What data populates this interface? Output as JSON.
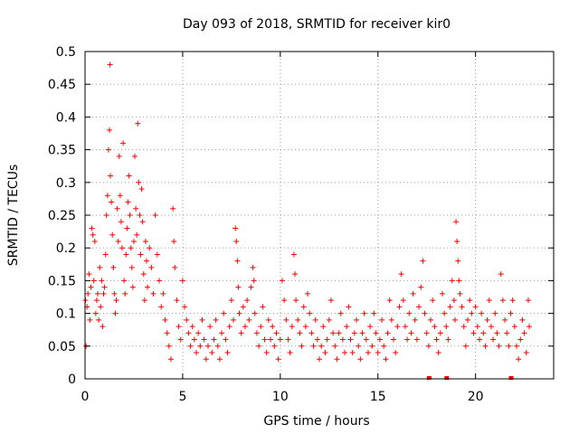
{
  "chart_data": {
    "type": "scatter",
    "title": "Day 093 of 2018, SRMTID for receiver kir0",
    "xlabel": "GPS time / hours",
    "ylabel": "SRMTID / TECUs",
    "xlim": [
      0,
      24
    ],
    "ylim": [
      0,
      0.5
    ],
    "xticks": [
      0,
      5,
      10,
      15,
      20
    ],
    "xtick_labels": [
      "0",
      "5",
      "10",
      "15",
      "20"
    ],
    "yticks": [
      0,
      0.05,
      0.1,
      0.15,
      0.2,
      0.25,
      0.3,
      0.35,
      0.4,
      0.45,
      0.5
    ],
    "ytick_labels": [
      "0",
      "0.05",
      "0.1",
      "0.15",
      "0.2",
      "0.25",
      "0.3",
      "0.35",
      "0.4",
      "0.45",
      "0.5"
    ],
    "grid": true,
    "marker": "+",
    "color": "#ff0000",
    "series": [
      {
        "name": "SRMTID",
        "points": [
          [
            0.02,
            0.12
          ],
          [
            0.05,
            0.05
          ],
          [
            0.1,
            0.11
          ],
          [
            0.15,
            0.13
          ],
          [
            0.2,
            0.16
          ],
          [
            0.25,
            0.09
          ],
          [
            0.3,
            0.14
          ],
          [
            0.35,
            0.23
          ],
          [
            0.4,
            0.22
          ],
          [
            0.45,
            0.15
          ],
          [
            0.5,
            0.21
          ],
          [
            0.55,
            0.1
          ],
          [
            0.6,
            0.12
          ],
          [
            0.65,
            0.13
          ],
          [
            0.7,
            0.09
          ],
          [
            0.75,
            0.17
          ],
          [
            0.8,
            0.11
          ],
          [
            0.85,
            0.15
          ],
          [
            0.9,
            0.08
          ],
          [
            0.95,
            0.13
          ],
          [
            1.0,
            0.14
          ],
          [
            1.05,
            0.19
          ],
          [
            1.1,
            0.25
          ],
          [
            1.15,
            0.28
          ],
          [
            1.2,
            0.35
          ],
          [
            1.25,
            0.38
          ],
          [
            1.28,
            0.48
          ],
          [
            1.3,
            0.31
          ],
          [
            1.35,
            0.27
          ],
          [
            1.4,
            0.22
          ],
          [
            1.45,
            0.17
          ],
          [
            1.5,
            0.13
          ],
          [
            1.55,
            0.1
          ],
          [
            1.6,
            0.12
          ],
          [
            1.65,
            0.26
          ],
          [
            1.7,
            0.21
          ],
          [
            1.75,
            0.34
          ],
          [
            1.8,
            0.28
          ],
          [
            1.85,
            0.24
          ],
          [
            1.9,
            0.2
          ],
          [
            1.95,
            0.36
          ],
          [
            2.0,
            0.15
          ],
          [
            2.05,
            0.13
          ],
          [
            2.1,
            0.19
          ],
          [
            2.15,
            0.23
          ],
          [
            2.2,
            0.27
          ],
          [
            2.25,
            0.31
          ],
          [
            2.3,
            0.25
          ],
          [
            2.35,
            0.2
          ],
          [
            2.4,
            0.17
          ],
          [
            2.45,
            0.14
          ],
          [
            2.5,
            0.21
          ],
          [
            2.55,
            0.34
          ],
          [
            2.6,
            0.26
          ],
          [
            2.65,
            0.22
          ],
          [
            2.7,
            0.39
          ],
          [
            2.75,
            0.3
          ],
          [
            2.8,
            0.25
          ],
          [
            2.85,
            0.19
          ],
          [
            2.9,
            0.29
          ],
          [
            2.95,
            0.24
          ],
          [
            3.0,
            0.16
          ],
          [
            3.05,
            0.12
          ],
          [
            3.1,
            0.21
          ],
          [
            3.15,
            0.18
          ],
          [
            3.2,
            0.14
          ],
          [
            3.3,
            0.2
          ],
          [
            3.4,
            0.17
          ],
          [
            3.5,
            0.13
          ],
          [
            3.6,
            0.25
          ],
          [
            3.7,
            0.19
          ],
          [
            3.8,
            0.15
          ],
          [
            3.9,
            0.11
          ],
          [
            4.0,
            0.13
          ],
          [
            4.1,
            0.09
          ],
          [
            4.2,
            0.07
          ],
          [
            4.3,
            0.05
          ],
          [
            4.4,
            0.03
          ],
          [
            4.5,
            0.26
          ],
          [
            4.55,
            0.21
          ],
          [
            4.6,
            0.17
          ],
          [
            4.7,
            0.12
          ],
          [
            4.8,
            0.08
          ],
          [
            4.9,
            0.06
          ],
          [
            5.0,
            0.15
          ],
          [
            5.1,
            0.11
          ],
          [
            5.2,
            0.09
          ],
          [
            5.3,
            0.07
          ],
          [
            5.4,
            0.05
          ],
          [
            5.5,
            0.08
          ],
          [
            5.6,
            0.06
          ],
          [
            5.7,
            0.04
          ],
          [
            5.8,
            0.07
          ],
          [
            5.9,
            0.05
          ],
          [
            6.0,
            0.09
          ],
          [
            6.1,
            0.06
          ],
          [
            6.2,
            0.03
          ],
          [
            6.3,
            0.05
          ],
          [
            6.4,
            0.08
          ],
          [
            6.5,
            0.04
          ],
          [
            6.6,
            0.06
          ],
          [
            6.7,
            0.09
          ],
          [
            6.8,
            0.05
          ],
          [
            6.9,
            0.03
          ],
          [
            7.0,
            0.07
          ],
          [
            7.1,
            0.1
          ],
          [
            7.2,
            0.06
          ],
          [
            7.3,
            0.04
          ],
          [
            7.4,
            0.08
          ],
          [
            7.5,
            0.12
          ],
          [
            7.6,
            0.09
          ],
          [
            7.7,
            0.23
          ],
          [
            7.75,
            0.21
          ],
          [
            7.8,
            0.18
          ],
          [
            7.85,
            0.14
          ],
          [
            7.9,
            0.1
          ],
          [
            8.0,
            0.07
          ],
          [
            8.1,
            0.11
          ],
          [
            8.2,
            0.08
          ],
          [
            8.3,
            0.12
          ],
          [
            8.4,
            0.09
          ],
          [
            8.5,
            0.14
          ],
          [
            8.6,
            0.17
          ],
          [
            8.65,
            0.15
          ],
          [
            8.7,
            0.1
          ],
          [
            8.8,
            0.07
          ],
          [
            8.9,
            0.05
          ],
          [
            9.0,
            0.08
          ],
          [
            9.1,
            0.11
          ],
          [
            9.2,
            0.06
          ],
          [
            9.3,
            0.04
          ],
          [
            9.4,
            0.09
          ],
          [
            9.5,
            0.06
          ],
          [
            9.6,
            0.08
          ],
          [
            9.7,
            0.05
          ],
          [
            9.8,
            0.07
          ],
          [
            9.9,
            0.03
          ],
          [
            10.0,
            0.06
          ],
          [
            10.1,
            0.15
          ],
          [
            10.2,
            0.12
          ],
          [
            10.3,
            0.09
          ],
          [
            10.4,
            0.06
          ],
          [
            10.5,
            0.04
          ],
          [
            10.6,
            0.08
          ],
          [
            10.7,
            0.19
          ],
          [
            10.75,
            0.16
          ],
          [
            10.8,
            0.12
          ],
          [
            10.9,
            0.09
          ],
          [
            11.0,
            0.07
          ],
          [
            11.1,
            0.05
          ],
          [
            11.2,
            0.11
          ],
          [
            11.3,
            0.08
          ],
          [
            11.4,
            0.13
          ],
          [
            11.5,
            0.1
          ],
          [
            11.6,
            0.07
          ],
          [
            11.7,
            0.05
          ],
          [
            11.8,
            0.09
          ],
          [
            11.9,
            0.06
          ],
          [
            12.0,
            0.03
          ],
          [
            12.1,
            0.05
          ],
          [
            12.2,
            0.08
          ],
          [
            12.3,
            0.04
          ],
          [
            12.4,
            0.06
          ],
          [
            12.5,
            0.09
          ],
          [
            12.6,
            0.12
          ],
          [
            12.7,
            0.07
          ],
          [
            12.8,
            0.05
          ],
          [
            12.9,
            0.03
          ],
          [
            13.0,
            0.07
          ],
          [
            13.1,
            0.1
          ],
          [
            13.2,
            0.06
          ],
          [
            13.3,
            0.04
          ],
          [
            13.4,
            0.08
          ],
          [
            13.5,
            0.11
          ],
          [
            13.6,
            0.06
          ],
          [
            13.7,
            0.04
          ],
          [
            13.8,
            0.07
          ],
          [
            13.9,
            0.09
          ],
          [
            14.0,
            0.05
          ],
          [
            14.1,
            0.03
          ],
          [
            14.2,
            0.07
          ],
          [
            14.3,
            0.1
          ],
          [
            14.4,
            0.06
          ],
          [
            14.5,
            0.04
          ],
          [
            14.6,
            0.08
          ],
          [
            14.7,
            0.05
          ],
          [
            14.8,
            0.1
          ],
          [
            14.9,
            0.07
          ],
          [
            15.0,
            0.04
          ],
          [
            15.1,
            0.06
          ],
          [
            15.2,
            0.09
          ],
          [
            15.3,
            0.05
          ],
          [
            15.4,
            0.03
          ],
          [
            15.5,
            0.07
          ],
          [
            15.6,
            0.12
          ],
          [
            15.7,
            0.09
          ],
          [
            15.8,
            0.06
          ],
          [
            15.9,
            0.04
          ],
          [
            16.0,
            0.08
          ],
          [
            16.1,
            0.11
          ],
          [
            16.2,
            0.16
          ],
          [
            16.3,
            0.12
          ],
          [
            16.4,
            0.08
          ],
          [
            16.5,
            0.06
          ],
          [
            16.6,
            0.1
          ],
          [
            16.7,
            0.07
          ],
          [
            16.8,
            0.13
          ],
          [
            16.9,
            0.09
          ],
          [
            17.0,
            0.06
          ],
          [
            17.1,
            0.11
          ],
          [
            17.2,
            0.14
          ],
          [
            17.3,
            0.18
          ],
          [
            17.4,
            0.1
          ],
          [
            17.5,
            0.07
          ],
          [
            17.6,
            0.05
          ],
          [
            17.7,
            0.09
          ],
          [
            17.8,
            0.12
          ],
          [
            17.9,
            0.08
          ],
          [
            18.0,
            0.06
          ],
          [
            18.1,
            0.04
          ],
          [
            18.2,
            0.07
          ],
          [
            18.3,
            0.13
          ],
          [
            18.4,
            0.1
          ],
          [
            18.5,
            0.08
          ],
          [
            18.6,
            0.06
          ],
          [
            18.7,
            0.11
          ],
          [
            18.8,
            0.15
          ],
          [
            18.9,
            0.12
          ],
          [
            18.95,
            0.09
          ],
          [
            19.0,
            0.24
          ],
          [
            19.05,
            0.21
          ],
          [
            19.1,
            0.18
          ],
          [
            19.15,
            0.15
          ],
          [
            19.2,
            0.13
          ],
          [
            19.3,
            0.11
          ],
          [
            19.4,
            0.08
          ],
          [
            19.5,
            0.05
          ],
          [
            19.6,
            0.09
          ],
          [
            19.7,
            0.12
          ],
          [
            19.8,
            0.1
          ],
          [
            19.9,
            0.07
          ],
          [
            20.0,
            0.11
          ],
          [
            20.1,
            0.08
          ],
          [
            20.2,
            0.06
          ],
          [
            20.3,
            0.1
          ],
          [
            20.4,
            0.07
          ],
          [
            20.5,
            0.05
          ],
          [
            20.6,
            0.09
          ],
          [
            20.7,
            0.12
          ],
          [
            20.8,
            0.08
          ],
          [
            20.9,
            0.06
          ],
          [
            21.0,
            0.1
          ],
          [
            21.1,
            0.07
          ],
          [
            21.2,
            0.05
          ],
          [
            21.3,
            0.16
          ],
          [
            21.4,
            0.12
          ],
          [
            21.5,
            0.09
          ],
          [
            21.6,
            0.07
          ],
          [
            21.7,
            0.05
          ],
          [
            21.8,
            0.1
          ],
          [
            21.9,
            0.12
          ],
          [
            22.0,
            0.08
          ],
          [
            22.1,
            0.05
          ],
          [
            22.2,
            0.03
          ],
          [
            22.3,
            0.06
          ],
          [
            22.4,
            0.09
          ],
          [
            22.5,
            0.07
          ],
          [
            22.6,
            0.04
          ],
          [
            22.7,
            0.12
          ],
          [
            22.75,
            0.08
          ]
        ]
      }
    ],
    "gap_markers_x": [
      17.6,
      18.5,
      21.8
    ]
  }
}
